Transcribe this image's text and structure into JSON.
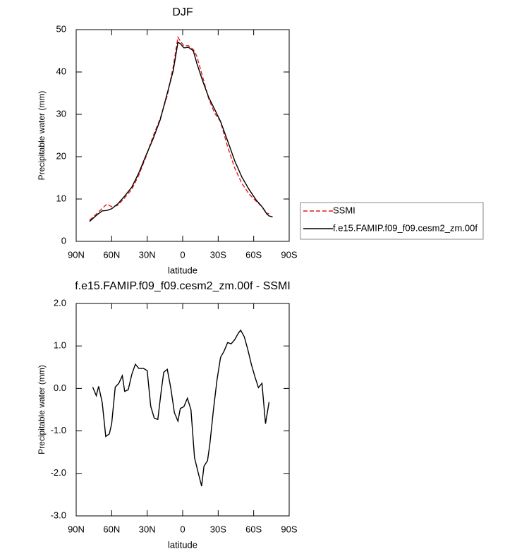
{
  "chart_data": [
    {
      "type": "line",
      "title": "DJF",
      "xlabel": "latitude",
      "ylabel": "Precipitable water (mm)",
      "x": [
        78.7,
        72.7,
        68,
        64,
        60,
        55,
        49,
        43,
        37,
        31,
        25,
        19,
        13,
        8,
        4,
        2,
        -1,
        -5,
        -9,
        -12,
        -17,
        -22,
        -27,
        -32,
        -38,
        -44,
        -50,
        -56,
        -62,
        -67,
        -71,
        -73,
        -76
      ],
      "series": [
        {
          "name": "SSMI",
          "color": "#e41a1c",
          "dash": true,
          "values": [
            5,
            6.5,
            7.8,
            8.8,
            8.2,
            8.5,
            10.3,
            12.3,
            15.7,
            20,
            24.8,
            29,
            34.5,
            41.2,
            48.2,
            47.3,
            46.2,
            46.2,
            45.3,
            43.7,
            38.7,
            33.7,
            30.3,
            28.3,
            22.3,
            17.3,
            13.7,
            11.2,
            9.5,
            8.2,
            6.7,
            6.5,
            null
          ]
        },
        {
          "name": "f.e15.FAMIP.f09_f09.cesm2_zm.00f",
          "color": "#000000",
          "dash": false,
          "values": [
            4.7,
            6.2,
            7.2,
            7.3,
            7.7,
            8.8,
            10.7,
            12.8,
            16.2,
            20.3,
            24.2,
            28.7,
            35,
            40.3,
            47,
            46.7,
            45.7,
            45.8,
            45,
            42,
            37.8,
            34,
            31.2,
            28.3,
            23.7,
            19,
            15.2,
            12.3,
            9.8,
            8.2,
            6.5,
            6,
            5.8
          ]
        }
      ],
      "xlim": [
        90,
        -90
      ],
      "xticks": [
        {
          "value": 90,
          "label": "90N"
        },
        {
          "value": 60,
          "label": "60N"
        },
        {
          "value": 30,
          "label": "30N"
        },
        0,
        {
          "value": -30,
          "label": "30S"
        },
        {
          "value": -60,
          "label": "60S"
        },
        {
          "value": -90,
          "label": "90S"
        }
      ],
      "ylim": [
        0,
        50
      ],
      "yticks": [
        0,
        10,
        20,
        30,
        40,
        50
      ],
      "legend": "right"
    },
    {
      "type": "line",
      "title": "f.e15.FAMIP.f09_f09.cesm2_zm.00f - SSMI",
      "xlabel": "latitude",
      "ylabel": "Precipitable water (mm)",
      "x": [
        76,
        73,
        71,
        68,
        65,
        62,
        60,
        57,
        54,
        51,
        49,
        46,
        43,
        40,
        37,
        33,
        30,
        27,
        24,
        21,
        18,
        16,
        13,
        10,
        7,
        4,
        2,
        -1,
        -4,
        -7,
        -10,
        -13,
        -16,
        -18,
        -21,
        -23,
        -26,
        -29,
        -32,
        -35,
        -38,
        -41,
        -44,
        -47,
        -49,
        -52,
        -55,
        -58,
        -61,
        -64,
        -67,
        -70,
        -73
      ],
      "series": [
        {
          "color": "#000000",
          "dash": false,
          "values": [
            0.03,
            -0.17,
            0.05,
            -0.33,
            -1.13,
            -1.07,
            -0.83,
            0.03,
            0.12,
            0.3,
            -0.07,
            -0.03,
            0.33,
            0.57,
            0.47,
            0.47,
            0.42,
            -0.42,
            -0.7,
            -0.73,
            -0.03,
            0.38,
            0.45,
            0,
            -0.57,
            -0.77,
            -0.47,
            -0.43,
            -0.23,
            -0.5,
            -1.63,
            -1.97,
            -2.3,
            -1.83,
            -1.7,
            -1.3,
            -0.5,
            0.2,
            0.73,
            0.88,
            1.08,
            1.05,
            1.15,
            1.3,
            1.37,
            1.22,
            0.92,
            0.57,
            0.28,
            0.02,
            0.12,
            -0.83,
            -0.32
          ]
        }
      ],
      "xlim": [
        90,
        -90
      ],
      "xticks": [
        {
          "value": 90,
          "label": "90N"
        },
        {
          "value": 60,
          "label": "60N"
        },
        {
          "value": 30,
          "label": "30N"
        },
        0,
        {
          "value": -30,
          "label": "30S"
        },
        {
          "value": -60,
          "label": "60S"
        },
        {
          "value": -90,
          "label": "90S"
        }
      ],
      "ylim": [
        -3,
        2
      ],
      "yticks": [
        {
          "value": -3,
          "label": "-3.0"
        },
        {
          "value": -2,
          "label": "-2.0"
        },
        {
          "value": -1,
          "label": "-1.0"
        },
        {
          "value": 0,
          "label": "0.0"
        },
        {
          "value": 1,
          "label": "1.0"
        },
        {
          "value": 2,
          "label": "2.0"
        }
      ]
    }
  ]
}
